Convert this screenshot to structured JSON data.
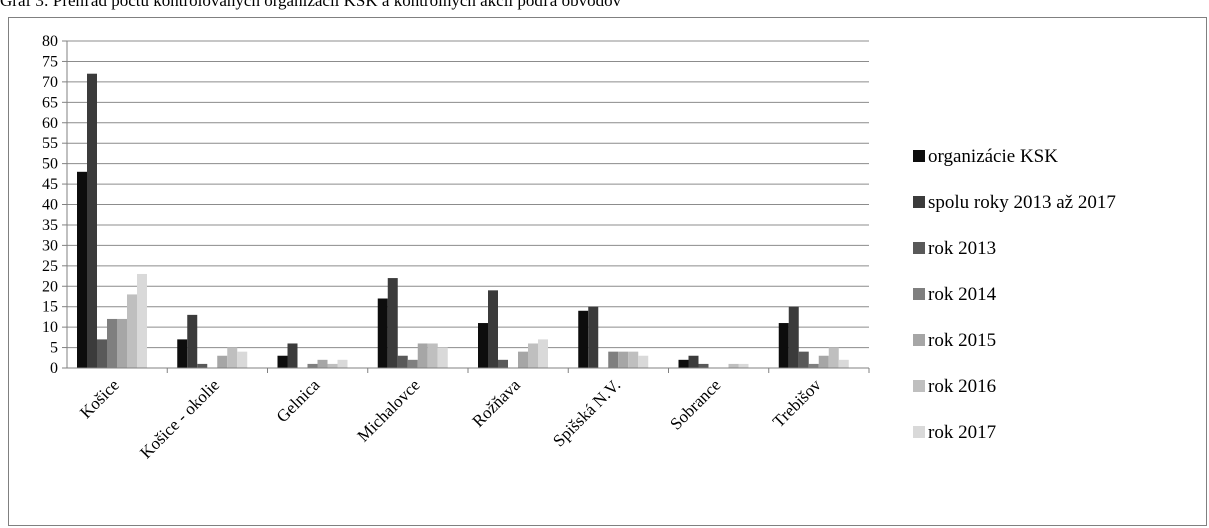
{
  "caption": "Graf 3: Prehľad počtu kontrolovaných organizácií KSK a kontrolných akcií podľa obvodov",
  "chart_data": {
    "type": "bar",
    "categories": [
      "Košice",
      "Košice - okolie",
      "Gelnica",
      "Michalovce",
      "Rožňava",
      "Spišská N.V.",
      "Sobrance",
      "Trebišov"
    ],
    "series": [
      {
        "name": "organizácie KSK",
        "color": "#0d0d0d",
        "values": [
          48,
          7,
          3,
          17,
          11,
          14,
          2,
          11
        ]
      },
      {
        "name": "spolu roky 2013 až 2017",
        "color": "#3b3b3b",
        "values": [
          72,
          13,
          6,
          22,
          19,
          15,
          3,
          15
        ]
      },
      {
        "name": "rok 2013",
        "color": "#595959",
        "values": [
          7,
          1,
          0,
          3,
          2,
          0,
          1,
          4
        ]
      },
      {
        "name": "rok 2014",
        "color": "#7f7f7f",
        "values": [
          12,
          0,
          1,
          2,
          0,
          4,
          0,
          1
        ]
      },
      {
        "name": "rok 2015",
        "color": "#a6a6a6",
        "values": [
          12,
          3,
          2,
          6,
          4,
          4,
          0,
          3
        ]
      },
      {
        "name": "rok 2016",
        "color": "#bfbfbf",
        "values": [
          18,
          5,
          1,
          6,
          6,
          4,
          1,
          5
        ]
      },
      {
        "name": "rok 2017",
        "color": "#d9d9d9",
        "values": [
          23,
          4,
          2,
          5,
          7,
          3,
          1,
          2
        ]
      }
    ],
    "ylim": [
      0,
      80
    ],
    "yticks": [
      0,
      5,
      10,
      15,
      20,
      25,
      30,
      35,
      40,
      45,
      50,
      55,
      60,
      65,
      70,
      75,
      80
    ],
    "grid": true,
    "legend": "right"
  }
}
